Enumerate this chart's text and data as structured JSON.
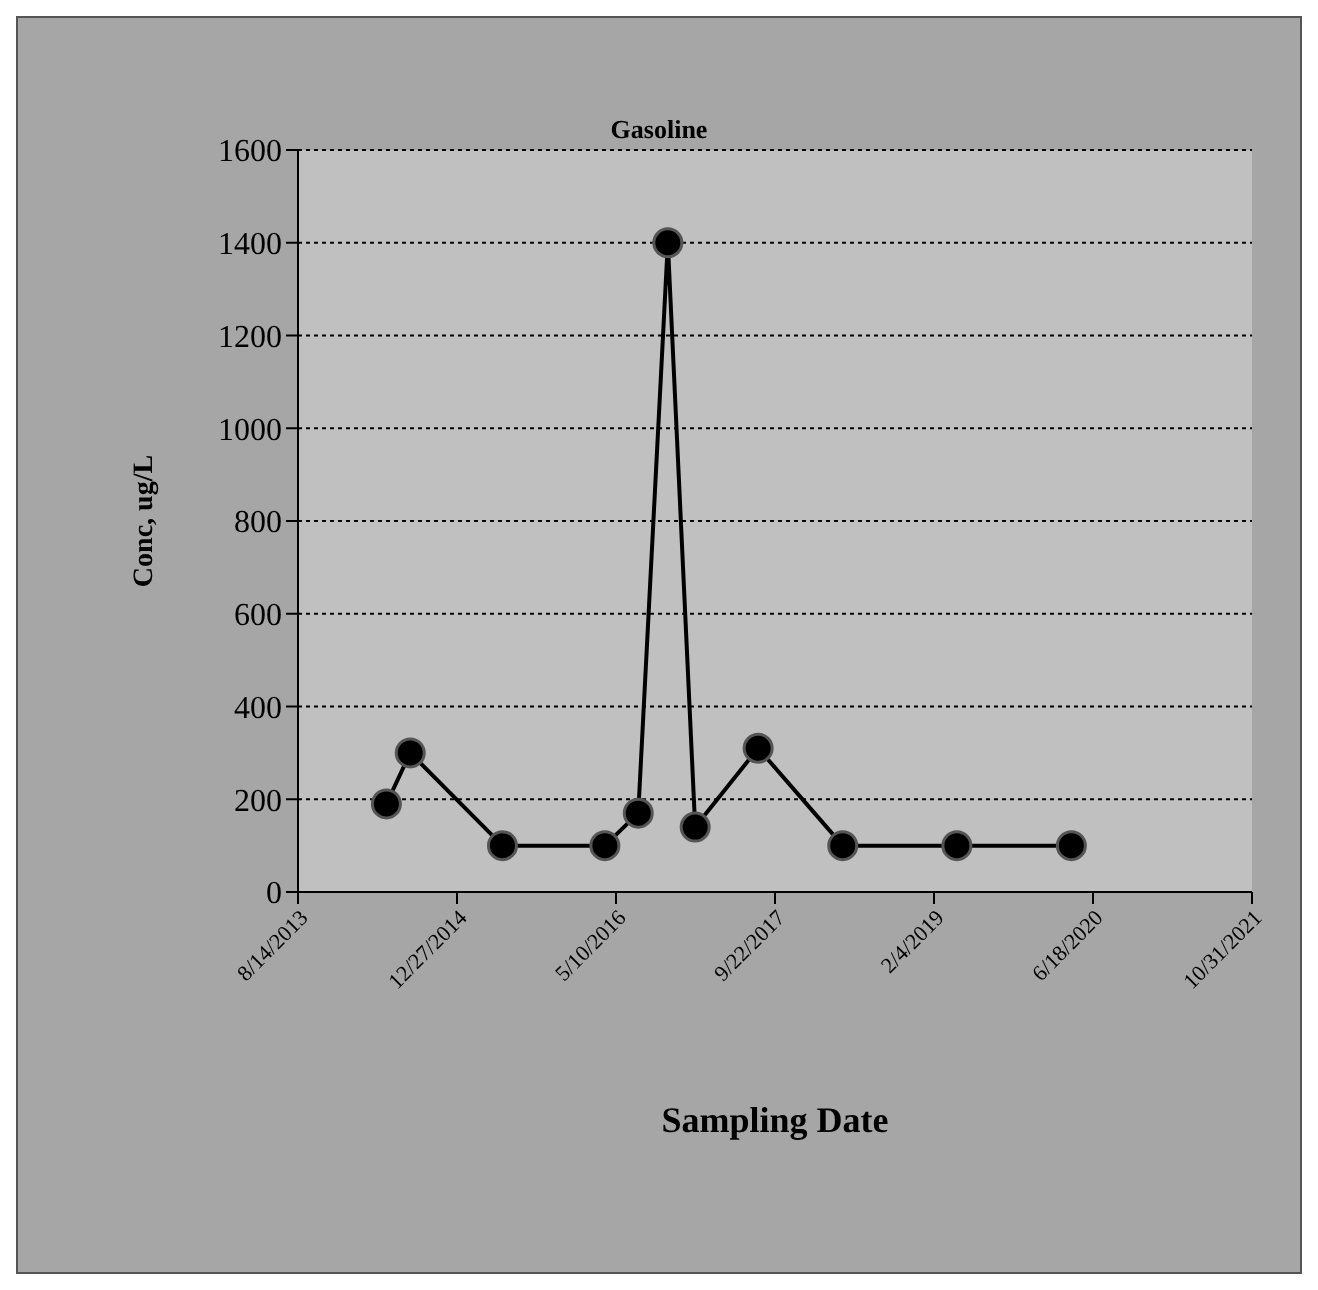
{
  "chart_data": {
    "type": "line",
    "title": "Gasoline",
    "xlabel": "Sampling Date",
    "ylabel": "Conc, ug/L",
    "x": [
      "2014-05-19",
      "2014-08-02",
      "2015-05-19",
      "2016-04-05",
      "2016-07-19",
      "2016-10-20",
      "2017-01-14",
      "2017-07-31",
      "2018-04-23",
      "2019-04-17",
      "2020-04-11"
    ],
    "series": [
      {
        "color": "#000000",
        "values": [
          190,
          300,
          100,
          100,
          170,
          1400,
          140,
          310,
          100,
          100,
          100
        ]
      }
    ],
    "xlim": [
      "2013-08-14",
      "2021-10-31"
    ],
    "xticks": [
      {
        "value": "2013-08-14",
        "label": "8/14/2013"
      },
      {
        "value": "2014-12-27",
        "label": "12/27/2014"
      },
      {
        "value": "2016-05-10",
        "label": "5/10/2016"
      },
      {
        "value": "2017-09-22",
        "label": "9/22/2017"
      },
      {
        "value": "2019-02-04",
        "label": "2/4/2019"
      },
      {
        "value": "2020-06-18",
        "label": "6/18/2020"
      },
      {
        "value": "2021-10-31",
        "label": "10/31/2021"
      }
    ],
    "ylim": [
      0,
      1600
    ],
    "yticks": [
      0,
      200,
      400,
      600,
      800,
      1000,
      1200,
      1400,
      1600
    ],
    "grid": "y",
    "marker": "circle",
    "line_style": "solid"
  }
}
